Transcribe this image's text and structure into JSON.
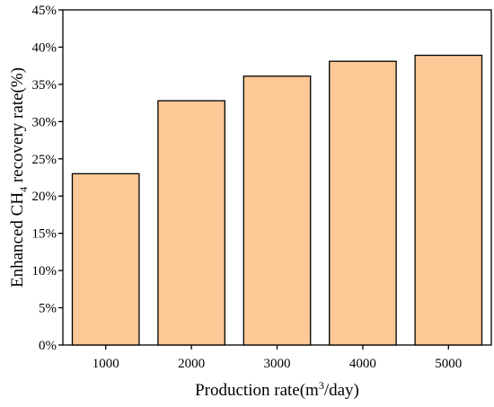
{
  "chart_data": {
    "type": "bar",
    "categories": [
      "1000",
      "2000",
      "3000",
      "4000",
      "5000"
    ],
    "values": [
      23.0,
      32.8,
      36.1,
      38.1,
      38.9
    ],
    "unit": "%",
    "ylim": [
      0,
      45
    ],
    "yticks": [
      "0%",
      "5%",
      "10%",
      "15%",
      "20%",
      "25%",
      "30%",
      "35%",
      "40%",
      "45%"
    ],
    "xlabel": {
      "prefix": "Production rate(m",
      "superscript": "3",
      "suffix": "/day)"
    },
    "ylabel": {
      "prefix": "Enhanced CH",
      "subscript": "4",
      "suffix": " recovery rate(%)"
    },
    "grid": false,
    "legend": "none",
    "colors": {
      "bar_fill": "#FDC896",
      "bar_stroke": "#000000",
      "axis": "#000000"
    }
  }
}
